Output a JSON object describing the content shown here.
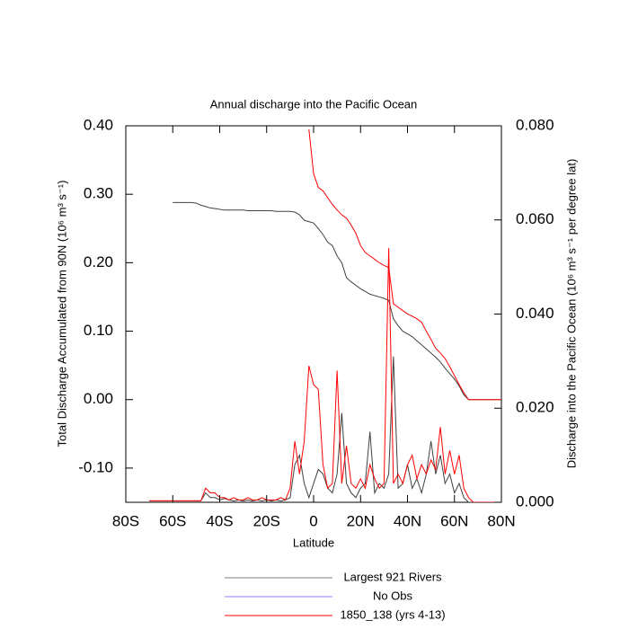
{
  "chart_data": {
    "type": "line",
    "title": "Annual discharge into the Pacific Ocean",
    "xlabel": "Latitude",
    "ylabel": "Total Discharge Accumulated from 90N (10⁶ m³ s⁻¹)",
    "y2label": "Discharge into the Pacific Ocean (10⁶ m³ s⁻¹ per degree lat)",
    "xlim": [
      -80,
      80
    ],
    "xticks": [
      {
        "value": -80,
        "label": "80S"
      },
      {
        "value": -60,
        "label": "60S"
      },
      {
        "value": -40,
        "label": "40S"
      },
      {
        "value": -20,
        "label": "20S"
      },
      0,
      {
        "value": 20,
        "label": "20N"
      },
      {
        "value": 40,
        "label": "40N"
      },
      {
        "value": 60,
        "label": "60N"
      },
      {
        "value": 80,
        "label": "80N"
      }
    ],
    "ylim": [
      -0.15,
      0.4
    ],
    "yticks": [
      {
        "value": -0.1,
        "label": "-0.10"
      },
      {
        "value": 0,
        "label": "0.00"
      },
      {
        "value": 0.1,
        "label": "0.10"
      },
      {
        "value": 0.2,
        "label": "0.20"
      },
      {
        "value": 0.3,
        "label": "0.30"
      },
      {
        "value": 0.4,
        "label": "0.40"
      }
    ],
    "y2lim": [
      0,
      0.08
    ],
    "y2ticks": [
      {
        "value": 0,
        "label": "0.000"
      },
      {
        "value": 0.02,
        "label": "0.020"
      },
      {
        "value": 0.04,
        "label": "0.040"
      },
      {
        "value": 0.06,
        "label": "0.060"
      },
      {
        "value": 0.08,
        "label": "0.080"
      }
    ],
    "legend": [
      {
        "name": "Largest 921 Rivers",
        "color": "#808080"
      },
      {
        "name": "No Obs",
        "color": "#8080ff"
      },
      {
        "name": "1850_138 (yrs 4-13)",
        "color": "#ff0000"
      }
    ],
    "x": [
      -70,
      -68,
      -66,
      -64,
      -62,
      -60,
      -58,
      -56,
      -54,
      -52,
      -50,
      -48,
      -46,
      -44,
      -42,
      -40,
      -38,
      -36,
      -34,
      -32,
      -30,
      -28,
      -26,
      -24,
      -22,
      -20,
      -18,
      -16,
      -14,
      -12,
      -10,
      -8,
      -6,
      -4,
      -2,
      0,
      2,
      4,
      6,
      8,
      10,
      12,
      14,
      16,
      18,
      20,
      22,
      24,
      26,
      28,
      30,
      32,
      34,
      36,
      38,
      40,
      42,
      44,
      46,
      48,
      50,
      52,
      54,
      56,
      58,
      60,
      62,
      64,
      66,
      68,
      70,
      72,
      74,
      76,
      78,
      80
    ],
    "series": [
      {
        "color": "#404040",
        "axis": "y",
        "values": [
          null,
          null,
          null,
          null,
          null,
          0.288,
          0.288,
          0.288,
          0.288,
          0.288,
          0.287,
          0.284,
          0.282,
          0.28,
          0.279,
          0.278,
          0.277,
          0.277,
          0.277,
          0.277,
          0.277,
          0.276,
          0.276,
          0.276,
          0.276,
          0.276,
          0.276,
          0.275,
          0.275,
          0.275,
          0.275,
          0.274,
          0.27,
          0.262,
          0.26,
          0.258,
          0.25,
          0.241,
          0.23,
          0.225,
          0.21,
          0.2,
          0.178,
          0.172,
          0.167,
          0.162,
          0.158,
          0.154,
          0.152,
          0.15,
          0.148,
          0.145,
          0.118,
          0.108,
          0.1,
          0.096,
          0.092,
          0.086,
          0.08,
          0.074,
          0.068,
          0.062,
          0.055,
          0.046,
          0.038,
          0.03,
          0.02,
          0.007,
          0,
          0,
          0,
          0,
          0,
          0,
          0,
          0
        ]
      },
      {
        "color": "#ff0000",
        "axis": "y",
        "values": [
          null,
          null,
          null,
          null,
          null,
          null,
          null,
          null,
          null,
          null,
          null,
          null,
          null,
          null,
          null,
          null,
          null,
          null,
          null,
          null,
          null,
          null,
          null,
          null,
          null,
          null,
          null,
          null,
          null,
          null,
          null,
          null,
          null,
          null,
          0.395,
          0.33,
          0.31,
          0.305,
          0.295,
          0.285,
          0.277,
          0.27,
          0.265,
          0.255,
          0.243,
          0.225,
          0.215,
          0.21,
          0.205,
          0.2,
          0.196,
          0.193,
          0.14,
          0.135,
          0.13,
          0.125,
          0.122,
          0.118,
          0.113,
          0.1,
          0.088,
          0.075,
          0.068,
          0.06,
          0.048,
          0.035,
          0.022,
          0.01,
          0,
          0,
          0,
          0,
          0,
          0,
          0,
          0
        ]
      },
      {
        "color": "#404040",
        "axis": "y2",
        "values": [
          0.0003,
          0.0003,
          0.0003,
          0.0003,
          0.0003,
          0.0003,
          0.0003,
          0.0003,
          0.0003,
          0.0003,
          0.0003,
          0.0003,
          0.002,
          0.001,
          0.001,
          0.0005,
          0.0008,
          0.0005,
          0.0003,
          0.0005,
          0.0003,
          0.0005,
          0.0003,
          0.0005,
          0.0003,
          0.0005,
          0.0003,
          0.0005,
          0.0003,
          0.0005,
          0.001,
          0.008,
          0.01,
          0.004,
          0.001,
          0.004,
          0.007,
          0.006,
          0.003,
          0.002,
          0.006,
          0.019,
          0.004,
          0.002,
          0.001,
          0.003,
          0.004,
          0.015,
          0.002,
          0.004,
          0.003,
          0.006,
          0.031,
          0.003,
          0.004,
          0.008,
          0.003,
          0.005,
          0.002,
          0.006,
          0.013,
          0.006,
          0.01,
          0.004,
          0.006,
          0.002,
          0.004,
          0.001,
          0,
          0,
          0,
          0,
          0,
          0,
          0,
          0
        ]
      },
      {
        "color": "#ff0000",
        "axis": "y2",
        "values": [
          0.0003,
          0.0003,
          0.0003,
          0.0003,
          0.0003,
          0.0003,
          0.0003,
          0.0003,
          0.0003,
          0.0003,
          0.0003,
          0.0003,
          0.003,
          0.002,
          0.002,
          0.001,
          0.001,
          0.0005,
          0.001,
          0.0005,
          0.0005,
          0.001,
          0.0005,
          0.0005,
          0.001,
          0.0005,
          0.0005,
          0.0005,
          0.001,
          0.0005,
          0.003,
          0.013,
          0.006,
          0.013,
          0.029,
          0.025,
          0.024,
          0.008,
          0.003,
          0.004,
          0.028,
          0.004,
          0.012,
          0.004,
          0.003,
          0.005,
          0.003,
          0.008,
          0.005,
          0.003,
          0.004,
          0.054,
          0.004,
          0.006,
          0.004,
          0.008,
          0.01,
          0.005,
          0.008,
          0.006,
          0.009,
          0.007,
          0.016,
          0.006,
          0.011,
          0.006,
          0.01,
          0.003,
          0.001,
          0,
          0,
          0,
          0,
          0,
          0,
          0
        ]
      }
    ]
  }
}
